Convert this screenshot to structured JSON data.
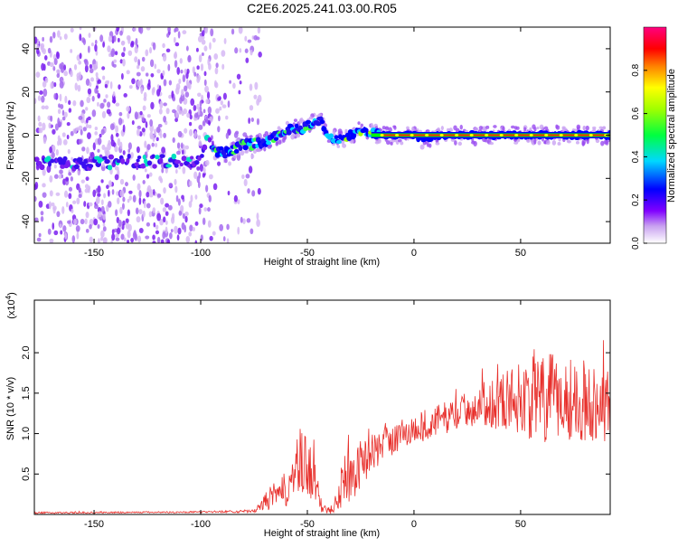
{
  "title": "C2E6.2025.241.03.00.R05",
  "chart_data": [
    {
      "type": "heatmap",
      "xlabel": "Height of straight line (km)",
      "ylabel": "Frequency (Hz)",
      "xlim": [
        -178,
        92
      ],
      "ylim": [
        -50,
        50
      ],
      "xticks": [
        -150,
        -100,
        -50,
        0,
        50
      ],
      "yticks": [
        -40,
        -20,
        0,
        20,
        40
      ],
      "ridge": {
        "x": [
          -178,
          -160,
          -155,
          -150,
          -145,
          -140,
          -135,
          -125,
          -110,
          -100,
          -97,
          -93,
          -88,
          -80,
          -70,
          -60,
          -50,
          -44,
          -40,
          -35,
          -30,
          -25,
          -20,
          -15,
          -10,
          0,
          5,
          10,
          20,
          40,
          60,
          80,
          92
        ],
        "freq": [
          -13,
          -13,
          -14,
          -12,
          -13,
          -12,
          -12,
          -12,
          -12,
          -12,
          0,
          -8,
          -8,
          -5,
          -3,
          2,
          4,
          8,
          -1,
          -2,
          0,
          2,
          1,
          0,
          0,
          0,
          -2,
          0,
          0,
          0,
          0,
          0,
          0
        ]
      },
      "colorbar": {
        "label": "Normalized spectral amplitude",
        "ticks": [
          "0.0",
          "0.2",
          "0.4",
          "0.6",
          "0.8"
        ],
        "range": [
          0,
          1
        ],
        "colors": [
          "#ffffff",
          "#a020f0",
          "#0000ff",
          "#00c8ff",
          "#00ff00",
          "#ffff00",
          "#ff8000",
          "#ff0000",
          "#ff00ff"
        ]
      }
    },
    {
      "type": "line",
      "xlabel": "Height of straight line (km)",
      "ylabel": "SNR (10 * v/v)",
      "scale_label": "(x10",
      "scale_exp": "4",
      "scale_close": ")",
      "xlim": [
        -178,
        92
      ],
      "ylim": [
        0,
        2.65
      ],
      "xticks": [
        -150,
        -100,
        -50,
        0,
        50
      ],
      "yticks": [
        "0.5",
        "1.0",
        "1.5",
        "2.0"
      ],
      "color": "#e8302c",
      "envelope": {
        "x": [
          -178,
          -100,
          -75,
          -72,
          -68,
          -62,
          -57,
          -53,
          -50,
          -47,
          -44,
          -41,
          -38,
          -35,
          -32,
          -29,
          -26,
          -22,
          -18,
          -12,
          -5,
          0,
          5,
          10,
          20,
          30,
          40,
          50,
          60,
          70,
          80,
          92
        ],
        "base": [
          0.02,
          0.03,
          0.04,
          0.1,
          0.2,
          0.25,
          0.45,
          0.6,
          0.55,
          0.5,
          0.12,
          0.05,
          0.1,
          0.35,
          0.45,
          0.5,
          0.6,
          0.7,
          0.8,
          0.9,
          1.0,
          1.05,
          1.1,
          1.15,
          1.25,
          1.35,
          1.4,
          1.45,
          1.4,
          1.45,
          1.4,
          1.35
        ],
        "spread": [
          0.01,
          0.01,
          0.02,
          0.05,
          0.15,
          0.2,
          0.3,
          0.5,
          0.4,
          0.35,
          0.1,
          0.05,
          0.1,
          0.3,
          0.35,
          0.35,
          0.3,
          0.25,
          0.25,
          0.2,
          0.2,
          0.2,
          0.2,
          0.2,
          0.2,
          0.25,
          0.35,
          0.45,
          0.6,
          0.55,
          0.5,
          0.45
        ]
      }
    }
  ]
}
